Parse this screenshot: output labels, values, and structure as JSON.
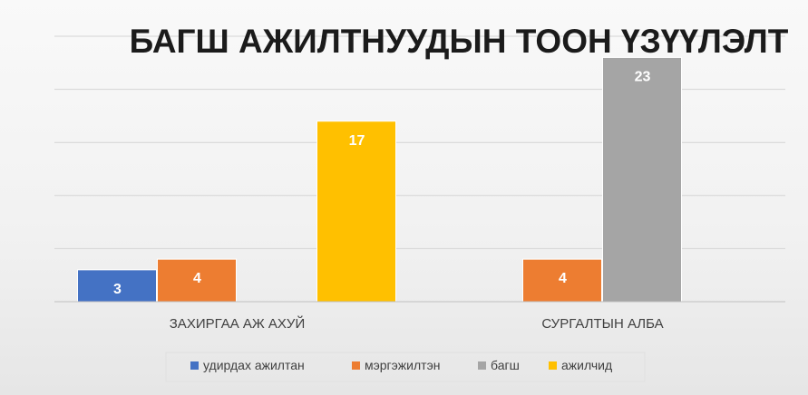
{
  "chart_data": {
    "type": "bar",
    "title": "БАГШ АЖИЛТНУУДЫН ТООН ҮЗҮҮЛЭЛТ",
    "categories": [
      "ЗАХИРГАА АЖ АХУЙ",
      "СУРГАЛТЫН АЛБА"
    ],
    "series": [
      {
        "name": "удирдах ажилтан",
        "color": "#4472C4",
        "values": [
          3,
          null
        ]
      },
      {
        "name": "мэргэжилтэн",
        "color": "#ED7D31",
        "values": [
          4,
          4
        ]
      },
      {
        "name": "багш",
        "color": "#A5A5A5",
        "values": [
          null,
          23
        ]
      },
      {
        "name": "ажилчид",
        "color": "#FFC000",
        "values": [
          17,
          null
        ]
      }
    ],
    "ylim": [
      0,
      25
    ],
    "gridlines": true,
    "axis_labels_visible": false,
    "legend_position": "bottom"
  }
}
